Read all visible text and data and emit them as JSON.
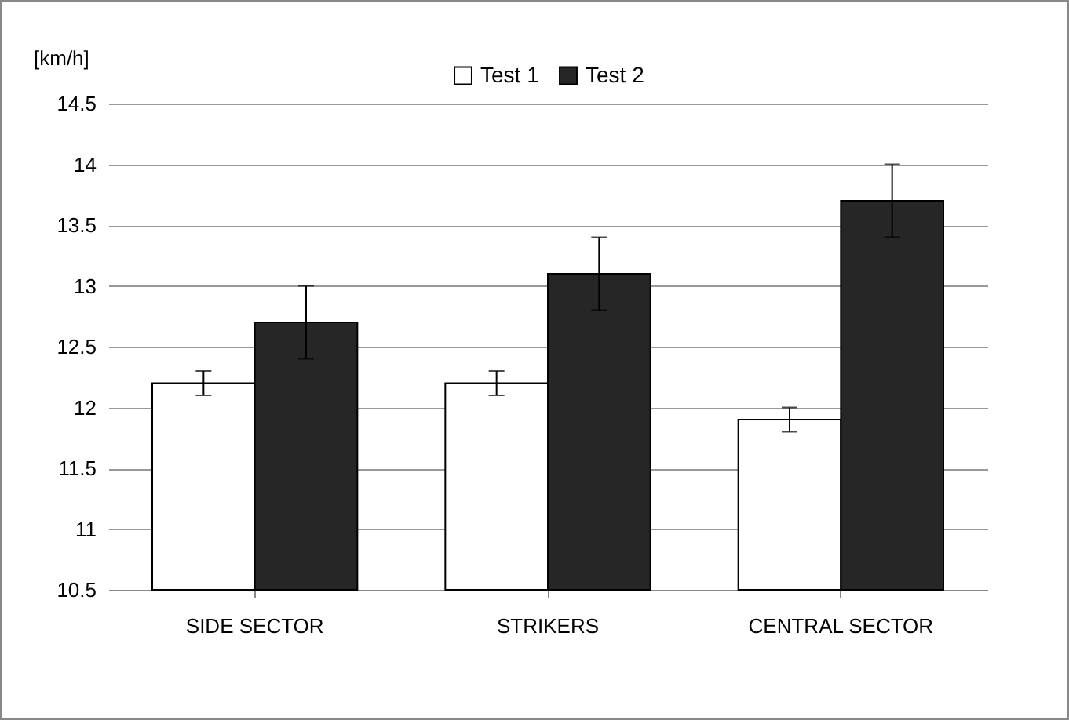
{
  "chart_data": {
    "type": "bar",
    "ylabel": "[km/h]",
    "categories": [
      "SIDE SECTOR",
      "STRIKERS",
      "CENTRAL SECTOR"
    ],
    "series": [
      {
        "name": "Test 1",
        "color": "#ffffff",
        "values": [
          12.2,
          12.2,
          11.9
        ],
        "errors": [
          0.1,
          0.1,
          0.1
        ]
      },
      {
        "name": "Test 2",
        "color": "#262626",
        "values": [
          12.7,
          13.1,
          13.7
        ],
        "errors": [
          0.3,
          0.3,
          0.3
        ]
      }
    ],
    "ylim": [
      10.5,
      14.5
    ],
    "yticks": [
      10.5,
      11,
      11.5,
      12,
      12.5,
      13,
      13.5,
      14,
      14.5
    ],
    "grid": "y",
    "legend": "top"
  }
}
